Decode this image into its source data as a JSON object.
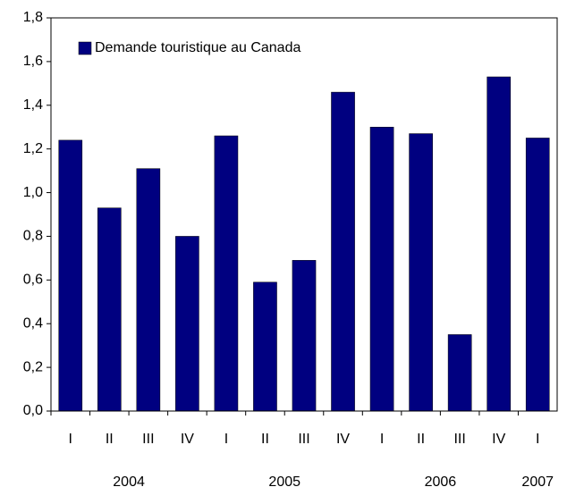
{
  "chart_data": {
    "type": "bar",
    "categories": [
      "I",
      "II",
      "III",
      "IV",
      "I",
      "II",
      "III",
      "IV",
      "I",
      "II",
      "III",
      "IV",
      "I"
    ],
    "years": [
      "2004",
      "2005",
      "2006",
      "2007"
    ],
    "series": [
      {
        "name": "Demande touristique au Canada",
        "color": "#000080",
        "values": [
          1.24,
          0.93,
          1.11,
          0.8,
          1.26,
          0.59,
          0.69,
          1.46,
          1.3,
          1.27,
          0.35,
          1.53,
          1.25
        ]
      }
    ],
    "ylim": [
      0,
      1.8
    ],
    "yticks": [
      {
        "value": 0,
        "label": "0,0"
      },
      {
        "value": 0.2,
        "label": "0,2"
      },
      {
        "value": 0.4,
        "label": "0,4"
      },
      {
        "value": 0.6,
        "label": "0,6"
      },
      {
        "value": 0.8,
        "label": "0,8"
      },
      {
        "value": 1.0,
        "label": "1,0"
      },
      {
        "value": 1.2,
        "label": "1,2"
      },
      {
        "value": 1.4,
        "label": "1,4"
      },
      {
        "value": 1.6,
        "label": "1,6"
      },
      {
        "value": 1.8,
        "label": "1,8"
      }
    ],
    "grid": false,
    "legend": "upper left"
  }
}
